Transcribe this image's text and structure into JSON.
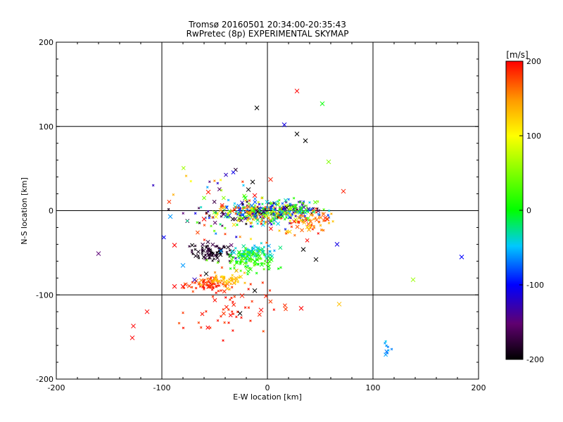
{
  "chart_data": [
    {
      "type": "scatter",
      "title": "Tromsø 20160501 20:34:00-20:35:43",
      "subtitle": "RwPretec (8p) EXPERIMENTAL SKYMAP",
      "xlabel": "E-W location [km]",
      "ylabel": "N-S location [km]",
      "xlim": [
        -200,
        200
      ],
      "ylim": [
        -200,
        200
      ],
      "x_ticks": [
        "-200",
        "-100",
        "0",
        "100",
        "200"
      ],
      "y_ticks": [
        "-200",
        "-100",
        "0",
        "100",
        "200"
      ],
      "grid": true,
      "color_scale": "velocity [m/s], -200 black → violet → blue → cyan → green → yellow → orange → red 200",
      "points_large": [
        {
          "x": -10,
          "y": 122,
          "v": -200
        },
        {
          "x": 28,
          "y": 142,
          "v": 200
        },
        {
          "x": 52,
          "y": 127,
          "v": 0
        },
        {
          "x": 16,
          "y": 102,
          "v": -110
        },
        {
          "x": 28,
          "y": 91,
          "v": -200
        },
        {
          "x": 36,
          "y": 83,
          "v": -200
        },
        {
          "x": 58,
          "y": 58,
          "v": 50
        },
        {
          "x": 72,
          "y": 23,
          "v": 190
        },
        {
          "x": -160,
          "y": -51,
          "v": -150
        },
        {
          "x": -114,
          "y": -120,
          "v": 200
        },
        {
          "x": -127,
          "y": -137,
          "v": 200
        },
        {
          "x": -128,
          "y": -151,
          "v": 200
        },
        {
          "x": 138,
          "y": -82,
          "v": 60
        },
        {
          "x": 184,
          "y": -55,
          "v": -100
        },
        {
          "x": 68,
          "y": -111,
          "v": 130
        },
        {
          "x": -88,
          "y": -41,
          "v": 200
        },
        {
          "x": -88,
          "y": -90,
          "v": 200
        },
        {
          "x": -80,
          "y": -90,
          "v": 200
        },
        {
          "x": -69,
          "y": -82,
          "v": -120
        },
        {
          "x": -12,
          "y": 18,
          "v": 200
        },
        {
          "x": -18,
          "y": 25,
          "v": -200
        },
        {
          "x": 3,
          "y": 37,
          "v": 190
        },
        {
          "x": -21,
          "y": 15,
          "v": 0
        },
        {
          "x": -14,
          "y": 34,
          "v": -200
        },
        {
          "x": -92,
          "y": -7,
          "v": -60
        },
        {
          "x": -56,
          "y": 22,
          "v": 190
        },
        {
          "x": -60,
          "y": -10,
          "v": 200
        },
        {
          "x": 66,
          "y": -40,
          "v": -110
        },
        {
          "x": 34,
          "y": -46,
          "v": -200
        },
        {
          "x": 46,
          "y": -58,
          "v": -200
        },
        {
          "x": -12,
          "y": -95,
          "v": -200
        },
        {
          "x": -24,
          "y": -101,
          "v": 190
        },
        {
          "x": -26,
          "y": -122,
          "v": -200
        },
        {
          "x": -6,
          "y": -118,
          "v": 200
        },
        {
          "x": 32,
          "y": -116,
          "v": 200
        },
        {
          "x": -80,
          "y": -65,
          "v": -60
        },
        {
          "x": -58,
          "y": -75,
          "v": -200
        }
      ],
      "clusters": [
        {
          "x": -8,
          "y": -3,
          "sx": 20,
          "sy": 6,
          "n": 320,
          "vmin": -200,
          "vmax": 200
        },
        {
          "x": 25,
          "y": 2,
          "sx": 14,
          "sy": 6,
          "n": 110,
          "vmin": -200,
          "vmax": 60
        },
        {
          "x": 38,
          "y": -12,
          "sx": 14,
          "sy": 8,
          "n": 70,
          "vmin": 120,
          "vmax": 200
        },
        {
          "x": -54,
          "y": -49,
          "sx": 9,
          "sy": 5,
          "n": 85,
          "vmin": -200,
          "vmax": -170
        },
        {
          "x": -14,
          "y": -50,
          "sx": 10,
          "sy": 5,
          "n": 85,
          "vmin": -60,
          "vmax": -20
        },
        {
          "x": -16,
          "y": -60,
          "sx": 11,
          "sy": 7,
          "n": 85,
          "vmin": 0,
          "vmax": 45
        },
        {
          "x": -58,
          "y": -88,
          "sx": 9,
          "sy": 4,
          "n": 60,
          "vmin": 170,
          "vmax": 200
        },
        {
          "x": -38,
          "y": -83,
          "sx": 10,
          "sy": 4,
          "n": 55,
          "vmin": 110,
          "vmax": 160
        },
        {
          "x": -35,
          "y": -118,
          "sx": 20,
          "sy": 17,
          "n": 55,
          "vmin": 175,
          "vmax": 200
        },
        {
          "x": -42,
          "y": 2,
          "sx": 22,
          "sy": 22,
          "n": 75,
          "vmin": -200,
          "vmax": 200
        },
        {
          "x": 112,
          "y": -162,
          "sx": 2,
          "sy": 9,
          "n": 10,
          "vmin": -70,
          "vmax": -45
        }
      ],
      "colorbar": {
        "label": "[m/s]",
        "min": -200,
        "max": 200,
        "ticks": [
          "200",
          "100",
          "0",
          "-100",
          "-200"
        ]
      }
    }
  ]
}
